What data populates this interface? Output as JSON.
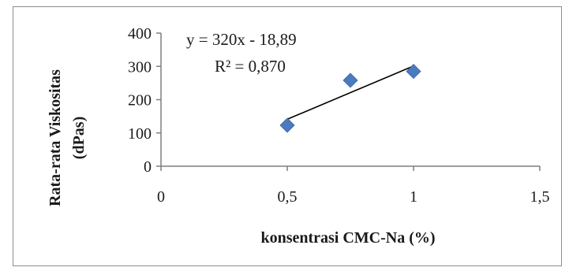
{
  "chart_data": {
    "type": "scatter",
    "xlabel": "konsentrasi CMC-Na (%)",
    "ylabel": "Rata-rata Viskositas (dPas)",
    "ylabel_lines": [
      "Rata-rata Viskositas",
      "(dPas)"
    ],
    "xlim": [
      0,
      1.5
    ],
    "ylim": [
      0,
      400
    ],
    "x_ticks": [
      0,
      0.5,
      1,
      1.5
    ],
    "x_tick_labels": [
      "0",
      "0,5",
      "1",
      "1,5"
    ],
    "y_ticks": [
      0,
      100,
      200,
      300,
      400
    ],
    "y_tick_labels": [
      "0",
      "100",
      "200",
      "300",
      "400"
    ],
    "series": [
      {
        "marker": "diamond",
        "color": "#4a7bbf",
        "x": [
          0.5,
          0.75,
          1.0
        ],
        "y": [
          123,
          258,
          285
        ]
      }
    ],
    "trendline": {
      "type": "linear",
      "slope": 320,
      "intercept": -18.89,
      "x_range": [
        0.5,
        1.0
      ],
      "color": "#000000"
    },
    "annotations": {
      "equation": "y = 320x - 18,89",
      "r_squared": "R² = 0,870"
    },
    "grid": false,
    "legend": "none"
  }
}
